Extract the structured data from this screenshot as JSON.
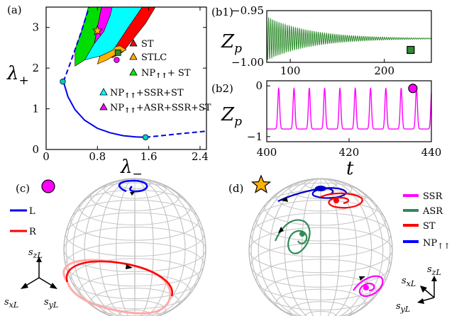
{
  "panels": {
    "a": {
      "tag": "(a)",
      "chart_data": {
        "type": "area",
        "xlabel_main": "λ",
        "xlabel_sub": "−",
        "ylabel_main": "λ",
        "ylabel_sub": "+",
        "xlim": [
          0,
          2.5
        ],
        "ylim": [
          0,
          3.5
        ],
        "xticks": [
          "0",
          "0.8",
          "1.6",
          "2.4"
        ],
        "xtick_values": [
          0,
          0.8,
          1.6,
          2.4
        ],
        "yticks": [
          "0",
          "1",
          "2",
          "3"
        ],
        "ytick_values": [
          0,
          1,
          2,
          3
        ],
        "boundary_solid": [
          [
            0.27,
            1.67
          ],
          [
            0.34,
            1.3
          ],
          [
            0.45,
            0.98
          ],
          [
            0.6,
            0.72
          ],
          [
            0.8,
            0.52
          ],
          [
            1.0,
            0.41
          ],
          [
            1.2,
            0.34
          ],
          [
            1.4,
            0.31
          ],
          [
            1.55,
            0.3
          ]
        ],
        "boundary_dashed_lower": [
          [
            1.55,
            0.3
          ],
          [
            1.8,
            0.34
          ],
          [
            2.1,
            0.39
          ],
          [
            2.5,
            0.45
          ]
        ],
        "boundary_dashed_upper": [
          [
            0.27,
            1.67
          ],
          [
            0.36,
            2.05
          ],
          [
            0.45,
            2.45
          ],
          [
            0.55,
            2.9
          ],
          [
            0.66,
            3.45
          ],
          [
            0.7,
            3.62
          ]
        ],
        "regions": [
          {
            "name": "ST",
            "color": "#ff0000",
            "polygon": [
              [
                1.03,
                2.25
              ],
              [
                1.2,
                2.4
              ],
              [
                1.55,
                3.1
              ],
              [
                1.75,
                3.62
              ],
              [
                1.28,
                3.62
              ],
              [
                1.02,
                3.0
              ],
              [
                0.9,
                2.5
              ]
            ]
          },
          {
            "name": "STLC",
            "color": "#ffb000",
            "polygon": [
              [
                0.8,
                2.1
              ],
              [
                0.95,
                2.2
              ],
              [
                1.05,
                2.3
              ],
              [
                1.25,
                2.45
              ],
              [
                1.15,
                2.55
              ],
              [
                1.0,
                2.5
              ],
              [
                0.85,
                2.35
              ]
            ]
          },
          {
            "name": "NP+ST",
            "color": "#00dd00",
            "polygon": [
              [
                0.45,
                2.05
              ],
              [
                0.6,
                2.2
              ],
              [
                0.75,
                2.6
              ],
              [
                0.88,
                3.62
              ],
              [
                0.68,
                3.62
              ],
              [
                0.55,
                2.9
              ],
              [
                0.45,
                2.45
              ]
            ]
          },
          {
            "name": "NP+SSR+ST",
            "color": "#00ffff",
            "polygon": [
              [
                0.6,
                2.2
              ],
              [
                0.85,
                2.3
              ],
              [
                1.05,
                2.45
              ],
              [
                1.28,
                3.0
              ],
              [
                1.55,
                3.62
              ],
              [
                1.0,
                3.62
              ],
              [
                0.88,
                3.3
              ],
              [
                0.75,
                2.6
              ]
            ]
          },
          {
            "name": "NP+ASR+SSR+ST",
            "color": "#ff00ff",
            "polygon": [
              [
                0.75,
                2.6
              ],
              [
                0.9,
                2.9
              ],
              [
                1.0,
                3.3
              ],
              [
                1.05,
                3.62
              ],
              [
                0.88,
                3.62
              ],
              [
                0.8,
                3.0
              ]
            ]
          }
        ],
        "markers": [
          {
            "name": "star",
            "x": 0.8,
            "y": 2.92,
            "color": "#ffb000"
          },
          {
            "name": "square",
            "x": 1.12,
            "y": 2.38,
            "color": "#2e8b2e"
          },
          {
            "name": "circle",
            "x": 1.1,
            "y": 2.2,
            "color": "#ff00ff"
          },
          {
            "name": "circle",
            "x": 0.26,
            "y": 1.67,
            "color": "#00cccc"
          },
          {
            "name": "circle",
            "x": 1.55,
            "y": 0.3,
            "color": "#00cccc"
          }
        ],
        "legend": [
          {
            "label": "ST",
            "color": "#ff0000"
          },
          {
            "label": "STLC",
            "color": "#ffb000"
          },
          {
            "label": "NP",
            "sub": "↑↑",
            "tail": "+ ST",
            "color": "#00ee00"
          },
          {
            "label": "NP",
            "sub": "↑↑",
            "tail": "+SSR+ST",
            "color": "#00ffff"
          },
          {
            "label": "NP",
            "sub": "↑↑",
            "tail": "+ASR+SSR+ST",
            "color": "#ff00ff"
          }
        ]
      }
    },
    "b1": {
      "tag": "(b1)",
      "chart_data": {
        "type": "line",
        "ylabel_main": "Z",
        "ylabel_sub": "p",
        "xlim": [
          75,
          250
        ],
        "ylim": [
          -1.0,
          -0.95
        ],
        "ytick_labels": [
          "−0.95",
          "−1.00"
        ],
        "ytick_values": [
          -0.95,
          -1.0
        ],
        "xticks": [
          "100",
          "200"
        ],
        "xtick_values": [
          100,
          200
        ],
        "series": [
          {
            "color": "#2e8b2e",
            "mean": -0.977,
            "initial_amplitude": 0.021,
            "decay_time": 45,
            "period": 2.2
          }
        ],
        "marker": {
          "shape": "square",
          "color": "#2e8b2e",
          "x": 228,
          "y": -0.988
        }
      }
    },
    "b2": {
      "tag": "(b2)",
      "chart_data": {
        "type": "line",
        "ylabel_main": "Z",
        "ylabel_sub": "p",
        "xlabel": "t",
        "xlim": [
          400,
          440
        ],
        "ylim": [
          -1.1,
          0.1
        ],
        "yticks": [
          "0",
          "−1"
        ],
        "ytick_values": [
          0,
          -1
        ],
        "xticks": [
          "400",
          "420",
          "440"
        ],
        "xtick_values": [
          400,
          420,
          440
        ],
        "series": [
          {
            "color": "#ff00ff",
            "baseline": -0.85,
            "peak": -0.05,
            "period": 3.72,
            "first_peak": 402.9
          }
        ],
        "marker": {
          "shape": "circle",
          "color": "#ff00ff",
          "x": 435.5,
          "y": -0.05
        }
      }
    },
    "c": {
      "tag": "(c)",
      "marker_color": "#ff00ff",
      "legend": [
        {
          "label": "L",
          "color": "#0000ff"
        },
        {
          "label": "R",
          "color": "#ff0000"
        }
      ],
      "axes": {
        "z": "s",
        "z_sub": "zL",
        "x": "s",
        "x_sub": "xL",
        "y": "s",
        "y_sub": "yL"
      }
    },
    "d": {
      "tag": "(d)",
      "marker_color": "#ffb000",
      "legend": [
        {
          "label": "SSR",
          "color": "#ff00ff"
        },
        {
          "label": "ASR",
          "color": "#2e8b57"
        },
        {
          "label": "ST",
          "color": "#ff0000"
        },
        {
          "label": "NP",
          "sub": "↑↑",
          "color": "#0000ff"
        }
      ],
      "axes": {
        "x": "s",
        "x_sub": "xL",
        "z": "s",
        "z_sub": "zL",
        "y": "s",
        "y_sub": "yL"
      }
    }
  }
}
